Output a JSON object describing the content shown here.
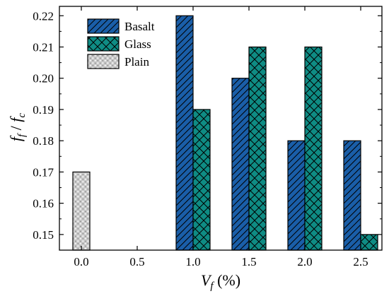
{
  "chart_data": {
    "type": "bar",
    "xlabel": {
      "main": "V",
      "sub": "f",
      "unit": " (%)"
    },
    "ylabel": {
      "num": "f",
      "num_sub": "f",
      "den": "f",
      "den_sub": "c"
    },
    "categories": [
      "0.0",
      "0.5",
      "1.0",
      "1.5",
      "2.0",
      "2.5"
    ],
    "x_values": [
      0.0,
      0.5,
      1.0,
      1.5,
      2.0,
      2.5
    ],
    "ylim": [
      0.145,
      0.223
    ],
    "yticks": [
      "0.15",
      "0.16",
      "0.17",
      "0.18",
      "0.19",
      "0.20",
      "0.21",
      "0.22"
    ],
    "ytick_values": [
      0.15,
      0.16,
      0.17,
      0.18,
      0.19,
      0.2,
      0.21,
      0.22
    ],
    "grid": false,
    "legend_position": "top-left",
    "series": [
      {
        "name": "Basalt",
        "color": "#1a5ea8",
        "pattern": "diagonal",
        "points": [
          {
            "x": 1.0,
            "value": 0.22
          },
          {
            "x": 1.5,
            "value": 0.2
          },
          {
            "x": 2.0,
            "value": 0.18
          },
          {
            "x": 2.5,
            "value": 0.18
          }
        ]
      },
      {
        "name": "Glass",
        "color": "#0f8c84",
        "pattern": "crosshatch",
        "points": [
          {
            "x": 1.0,
            "value": 0.19
          },
          {
            "x": 1.5,
            "value": 0.21
          },
          {
            "x": 2.0,
            "value": 0.21
          },
          {
            "x": 2.5,
            "value": 0.15
          }
        ]
      },
      {
        "name": "Plain",
        "color": "#c8c8c8",
        "pattern": "dots",
        "points": [
          {
            "x": 0.0,
            "value": 0.17
          }
        ]
      }
    ]
  }
}
